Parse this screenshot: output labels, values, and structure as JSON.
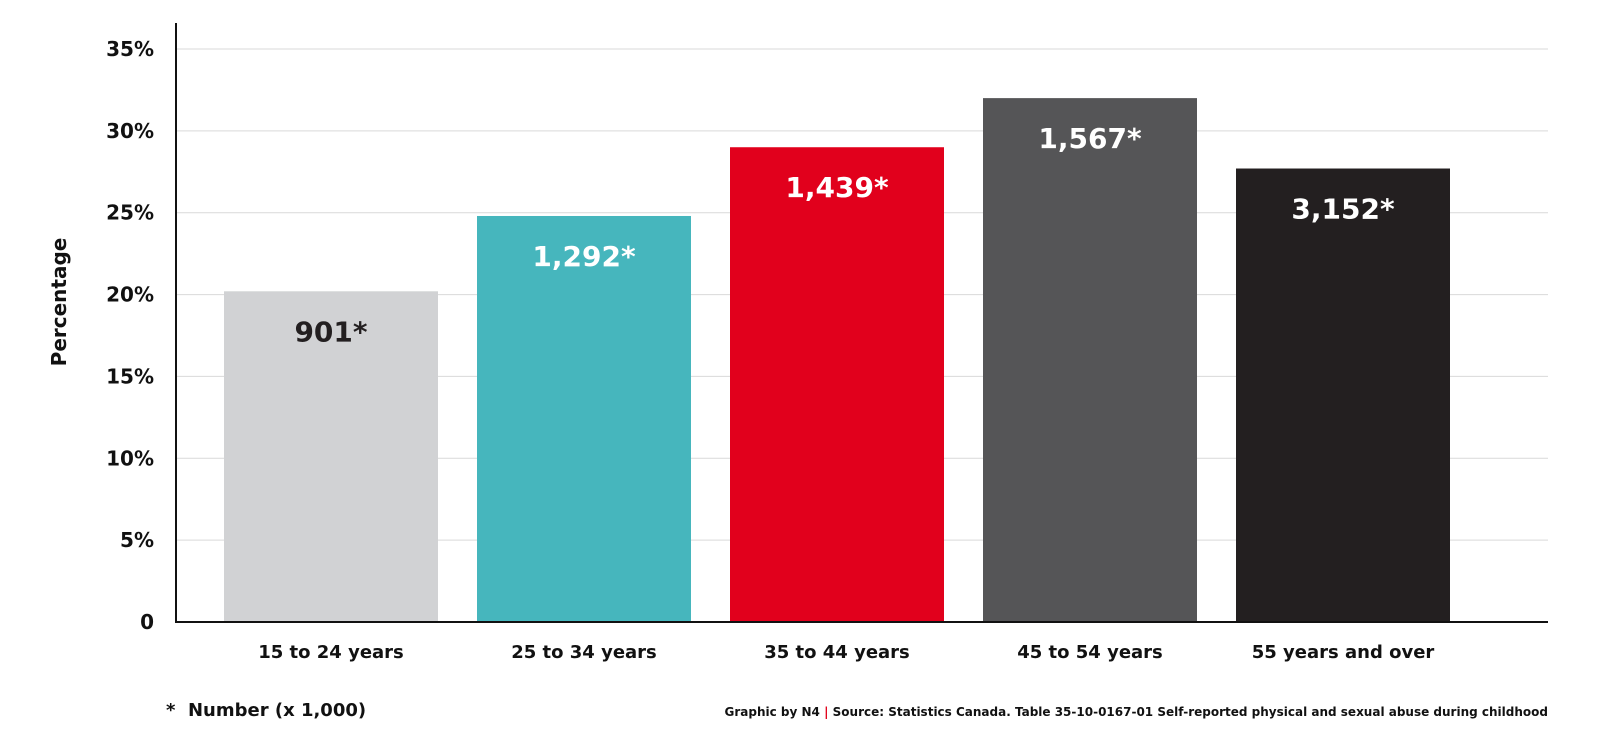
{
  "chart_data": {
    "type": "bar",
    "categories": [
      "15 to 24 years",
      "25 to 34 years",
      "35 to 44 years",
      "45 to 54 years",
      "55 years and over"
    ],
    "values": [
      20.2,
      24.8,
      29.0,
      32.0,
      27.7
    ],
    "data_labels": [
      "901*",
      "1,292*",
      "1,439*",
      "1,567*",
      "3,152*"
    ],
    "bar_colors": [
      "#d1d2d4",
      "#46b6bd",
      "#e1001c",
      "#555557",
      "#231f20"
    ],
    "data_label_colors": [
      "#231f20",
      "#ffffff",
      "#ffffff",
      "#ffffff",
      "#ffffff"
    ],
    "ylabel": "Percentage",
    "ylim": [
      0,
      35
    ],
    "yticks": [
      0,
      5,
      10,
      15,
      20,
      25,
      30,
      35
    ],
    "ytick_labels": [
      "0",
      "5%",
      "10%",
      "15%",
      "20%",
      "25%",
      "30%",
      "35%"
    ],
    "grid": true,
    "legend": "none"
  },
  "footnote": {
    "asterisk": "*",
    "text": "Number  (x 1,000)"
  },
  "source": {
    "credit": "Graphic by N4",
    "separator": "|",
    "text": "Source: Statistics Canada. Table 35-10-0167-01  Self-reported physical and sexual abuse during childhood"
  }
}
